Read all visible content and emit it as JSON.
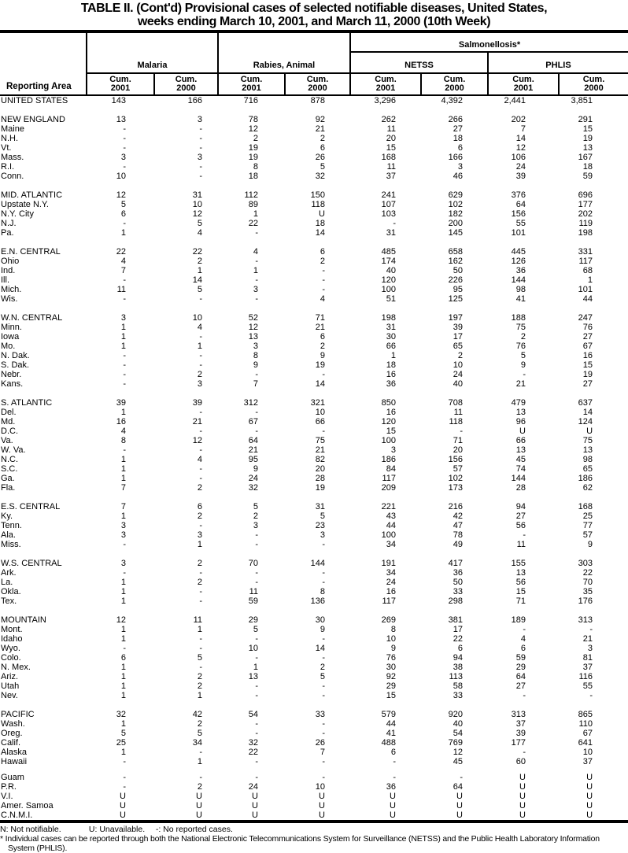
{
  "title": {
    "line1": "TABLE II. (Cont'd) Provisional cases of selected notifiable diseases, United States,",
    "line2": "weeks ending March 10, 2001, and March 11, 2000 (10th Week)"
  },
  "header": {
    "reporting_area": "Reporting Area",
    "salmonellosis": "Salmonellosis*",
    "groups": {
      "malaria": "Malaria",
      "rabies": "Rabies, Animal",
      "netss": "NETSS",
      "phlis": "PHLIS"
    },
    "cum": "Cum.",
    "years": [
      "2001",
      "2000"
    ]
  },
  "table": {
    "sections": [
      {
        "rows": [
          {
            "area": "UNITED STATES",
            "values": [
              "143",
              "166",
              "716",
              "878",
              "3,296",
              "4,392",
              "2,441",
              "3,851"
            ]
          }
        ]
      },
      {
        "rows": [
          {
            "area": "NEW ENGLAND",
            "values": [
              "13",
              "3",
              "78",
              "92",
              "262",
              "266",
              "202",
              "291"
            ]
          },
          {
            "area": "Maine",
            "values": [
              "-",
              "-",
              "12",
              "21",
              "11",
              "27",
              "7",
              "15"
            ]
          },
          {
            "area": "N.H.",
            "values": [
              "-",
              "-",
              "2",
              "2",
              "20",
              "18",
              "14",
              "19"
            ]
          },
          {
            "area": "Vt.",
            "values": [
              "-",
              "-",
              "19",
              "6",
              "15",
              "6",
              "12",
              "13"
            ]
          },
          {
            "area": "Mass.",
            "values": [
              "3",
              "3",
              "19",
              "26",
              "168",
              "166",
              "106",
              "167"
            ]
          },
          {
            "area": "R.I.",
            "values": [
              "-",
              "-",
              "8",
              "5",
              "11",
              "3",
              "24",
              "18"
            ]
          },
          {
            "area": "Conn.",
            "values": [
              "10",
              "-",
              "18",
              "32",
              "37",
              "46",
              "39",
              "59"
            ]
          }
        ]
      },
      {
        "rows": [
          {
            "area": "MID. ATLANTIC",
            "values": [
              "12",
              "31",
              "112",
              "150",
              "241",
              "629",
              "376",
              "696"
            ]
          },
          {
            "area": "Upstate N.Y.",
            "values": [
              "5",
              "10",
              "89",
              "118",
              "107",
              "102",
              "64",
              "177"
            ]
          },
          {
            "area": "N.Y. City",
            "values": [
              "6",
              "12",
              "1",
              "U",
              "103",
              "182",
              "156",
              "202"
            ]
          },
          {
            "area": "N.J.",
            "values": [
              "-",
              "5",
              "22",
              "18",
              "-",
              "200",
              "55",
              "119"
            ]
          },
          {
            "area": "Pa.",
            "values": [
              "1",
              "4",
              "-",
              "14",
              "31",
              "145",
              "101",
              "198"
            ]
          }
        ]
      },
      {
        "rows": [
          {
            "area": "E.N. CENTRAL",
            "values": [
              "22",
              "22",
              "4",
              "6",
              "485",
              "658",
              "445",
              "331"
            ]
          },
          {
            "area": "Ohio",
            "values": [
              "4",
              "2",
              "-",
              "2",
              "174",
              "162",
              "126",
              "117"
            ]
          },
          {
            "area": "Ind.",
            "values": [
              "7",
              "1",
              "1",
              "-",
              "40",
              "50",
              "36",
              "68"
            ]
          },
          {
            "area": "Ill.",
            "values": [
              "-",
              "14",
              "-",
              "-",
              "120",
              "226",
              "144",
              "1"
            ]
          },
          {
            "area": "Mich.",
            "values": [
              "11",
              "5",
              "3",
              "-",
              "100",
              "95",
              "98",
              "101"
            ]
          },
          {
            "area": "Wis.",
            "values": [
              "-",
              "-",
              "-",
              "4",
              "51",
              "125",
              "41",
              "44"
            ]
          }
        ]
      },
      {
        "rows": [
          {
            "area": "W.N. CENTRAL",
            "values": [
              "3",
              "10",
              "52",
              "71",
              "198",
              "197",
              "188",
              "247"
            ]
          },
          {
            "area": "Minn.",
            "values": [
              "1",
              "4",
              "12",
              "21",
              "31",
              "39",
              "75",
              "76"
            ]
          },
          {
            "area": "Iowa",
            "values": [
              "1",
              "-",
              "13",
              "6",
              "30",
              "17",
              "2",
              "27"
            ]
          },
          {
            "area": "Mo.",
            "values": [
              "1",
              "1",
              "3",
              "2",
              "66",
              "65",
              "76",
              "67"
            ]
          },
          {
            "area": "N. Dak.",
            "values": [
              "-",
              "-",
              "8",
              "9",
              "1",
              "2",
              "5",
              "16"
            ]
          },
          {
            "area": "S. Dak.",
            "values": [
              "-",
              "-",
              "9",
              "19",
              "18",
              "10",
              "9",
              "15"
            ]
          },
          {
            "area": "Nebr.",
            "values": [
              "-",
              "2",
              "-",
              "-",
              "16",
              "24",
              "-",
              "19"
            ]
          },
          {
            "area": "Kans.",
            "values": [
              "-",
              "3",
              "7",
              "14",
              "36",
              "40",
              "21",
              "27"
            ]
          }
        ]
      },
      {
        "rows": [
          {
            "area": "S. ATLANTIC",
            "values": [
              "39",
              "39",
              "312",
              "321",
              "850",
              "708",
              "479",
              "637"
            ]
          },
          {
            "area": "Del.",
            "values": [
              "1",
              "-",
              "-",
              "10",
              "16",
              "11",
              "13",
              "14"
            ]
          },
          {
            "area": "Md.",
            "values": [
              "16",
              "21",
              "67",
              "66",
              "120",
              "118",
              "96",
              "124"
            ]
          },
          {
            "area": "D.C.",
            "values": [
              "4",
              "-",
              "-",
              "-",
              "15",
              "-",
              "U",
              "U"
            ]
          },
          {
            "area": "Va.",
            "values": [
              "8",
              "12",
              "64",
              "75",
              "100",
              "71",
              "66",
              "75"
            ]
          },
          {
            "area": "W. Va.",
            "values": [
              "-",
              "-",
              "21",
              "21",
              "3",
              "20",
              "13",
              "13"
            ]
          },
          {
            "area": "N.C.",
            "values": [
              "1",
              "4",
              "95",
              "82",
              "186",
              "156",
              "45",
              "98"
            ]
          },
          {
            "area": "S.C.",
            "values": [
              "1",
              "-",
              "9",
              "20",
              "84",
              "57",
              "74",
              "65"
            ]
          },
          {
            "area": "Ga.",
            "values": [
              "1",
              "-",
              "24",
              "28",
              "117",
              "102",
              "144",
              "186"
            ]
          },
          {
            "area": "Fla.",
            "values": [
              "7",
              "2",
              "32",
              "19",
              "209",
              "173",
              "28",
              "62"
            ]
          }
        ]
      },
      {
        "rows": [
          {
            "area": "E.S. CENTRAL",
            "values": [
              "7",
              "6",
              "5",
              "31",
              "221",
              "216",
              "94",
              "168"
            ]
          },
          {
            "area": "Ky.",
            "values": [
              "1",
              "2",
              "2",
              "5",
              "43",
              "42",
              "27",
              "25"
            ]
          },
          {
            "area": "Tenn.",
            "values": [
              "3",
              "-",
              "3",
              "23",
              "44",
              "47",
              "56",
              "77"
            ]
          },
          {
            "area": "Ala.",
            "values": [
              "3",
              "3",
              "-",
              "3",
              "100",
              "78",
              "-",
              "57"
            ]
          },
          {
            "area": "Miss.",
            "values": [
              "-",
              "1",
              "-",
              "-",
              "34",
              "49",
              "11",
              "9"
            ]
          }
        ]
      },
      {
        "rows": [
          {
            "area": "W.S. CENTRAL",
            "values": [
              "3",
              "2",
              "70",
              "144",
              "191",
              "417",
              "155",
              "303"
            ]
          },
          {
            "area": "Ark.",
            "values": [
              "-",
              "-",
              "-",
              "-",
              "34",
              "36",
              "13",
              "22"
            ]
          },
          {
            "area": "La.",
            "values": [
              "1",
              "2",
              "-",
              "-",
              "24",
              "50",
              "56",
              "70"
            ]
          },
          {
            "area": "Okla.",
            "values": [
              "1",
              "-",
              "11",
              "8",
              "16",
              "33",
              "15",
              "35"
            ]
          },
          {
            "area": "Tex.",
            "values": [
              "1",
              "-",
              "59",
              "136",
              "117",
              "298",
              "71",
              "176"
            ]
          }
        ]
      },
      {
        "rows": [
          {
            "area": "MOUNTAIN",
            "values": [
              "12",
              "11",
              "29",
              "30",
              "269",
              "381",
              "189",
              "313"
            ]
          },
          {
            "area": "Mont.",
            "values": [
              "1",
              "1",
              "5",
              "9",
              "8",
              "17",
              "-",
              "-"
            ]
          },
          {
            "area": "Idaho",
            "values": [
              "1",
              "-",
              "-",
              "-",
              "10",
              "22",
              "4",
              "21"
            ]
          },
          {
            "area": "Wyo.",
            "values": [
              "-",
              "-",
              "10",
              "14",
              "9",
              "6",
              "6",
              "3"
            ]
          },
          {
            "area": "Colo.",
            "values": [
              "6",
              "5",
              "-",
              "-",
              "76",
              "94",
              "59",
              "81"
            ]
          },
          {
            "area": "N. Mex.",
            "values": [
              "1",
              "-",
              "1",
              "2",
              "30",
              "38",
              "29",
              "37"
            ]
          },
          {
            "area": "Ariz.",
            "values": [
              "1",
              "2",
              "13",
              "5",
              "92",
              "113",
              "64",
              "116"
            ]
          },
          {
            "area": "Utah",
            "values": [
              "1",
              "2",
              "-",
              "-",
              "29",
              "58",
              "27",
              "55"
            ]
          },
          {
            "area": "Nev.",
            "values": [
              "1",
              "1",
              "-",
              "-",
              "15",
              "33",
              "-",
              "-"
            ]
          }
        ]
      },
      {
        "rows": [
          {
            "area": "PACIFIC",
            "values": [
              "32",
              "42",
              "54",
              "33",
              "579",
              "920",
              "313",
              "865"
            ]
          },
          {
            "area": "Wash.",
            "values": [
              "1",
              "2",
              "-",
              "-",
              "44",
              "40",
              "37",
              "110"
            ]
          },
          {
            "area": "Oreg.",
            "values": [
              "5",
              "5",
              "-",
              "-",
              "41",
              "54",
              "39",
              "67"
            ]
          },
          {
            "area": "Calif.",
            "values": [
              "25",
              "34",
              "32",
              "26",
              "488",
              "769",
              "177",
              "641"
            ]
          },
          {
            "area": "Alaska",
            "values": [
              "1",
              "-",
              "22",
              "7",
              "6",
              "12",
              "-",
              "10"
            ]
          },
          {
            "area": "Hawaii",
            "values": [
              "-",
              "1",
              "-",
              "-",
              "-",
              "45",
              "60",
              "37"
            ]
          }
        ]
      },
      {
        "gap": "small",
        "rows": [
          {
            "area": "Guam",
            "values": [
              "-",
              "-",
              "-",
              "-",
              "-",
              "-",
              "U",
              "U"
            ]
          },
          {
            "area": "P.R.",
            "values": [
              "-",
              "2",
              "24",
              "10",
              "36",
              "64",
              "U",
              "U"
            ]
          },
          {
            "area": "V.I.",
            "values": [
              "U",
              "U",
              "U",
              "U",
              "U",
              "U",
              "U",
              "U"
            ]
          },
          {
            "area": "Amer. Samoa",
            "values": [
              "U",
              "U",
              "U",
              "U",
              "U",
              "U",
              "U",
              "U"
            ]
          },
          {
            "area": "C.N.M.I.",
            "values": [
              "U",
              "U",
              "U",
              "U",
              "U",
              "U",
              "U",
              "U"
            ]
          }
        ]
      }
    ]
  },
  "footnotes": {
    "legend": [
      "N: Not notifiable.",
      "U: Unavailable.",
      "-: No reported cases."
    ],
    "note": "* Individual cases can be reported through both the National Electronic Telecommunications System for Surveillance (NETSS) and the Public Health Laboratory Information System (PHLIS)."
  }
}
